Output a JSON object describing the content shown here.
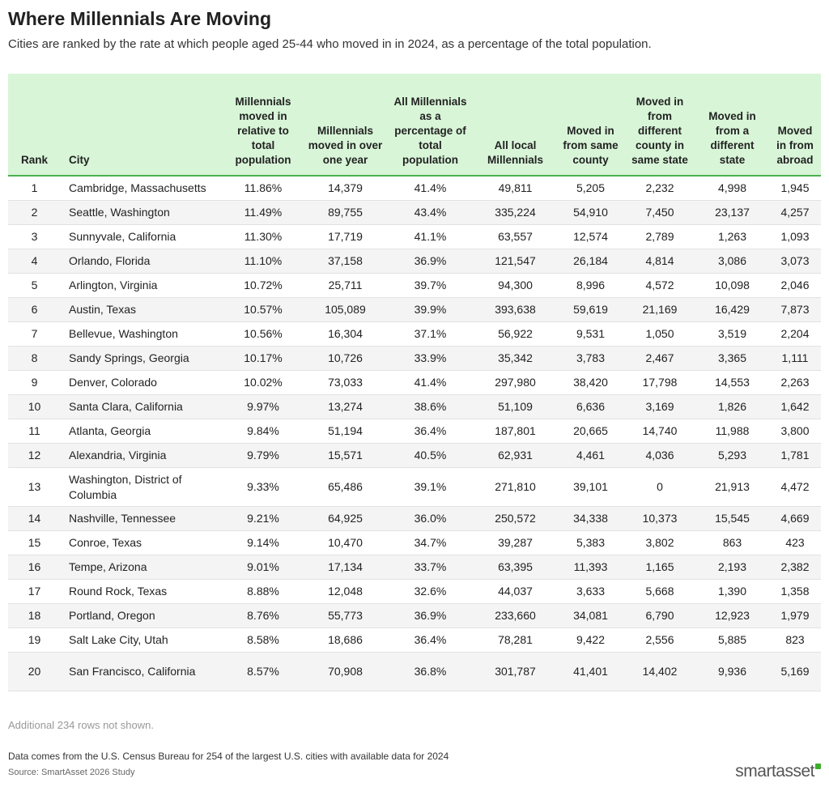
{
  "title": "Where Millennials Are Moving",
  "subtitle": "Cities are ranked by the rate at which people aged 25-44 who moved in in 2024, as a percentage of the total population.",
  "note": "Additional 234 rows not shown.",
  "footnote": "Data comes from the U.S. Census Bureau for 254 of the largest U.S. cities with available data for 2024",
  "source": "Source: SmartAsset 2026 Study",
  "logo": "smartasset",
  "colors": {
    "header_bg": "#d8f5d8",
    "header_rule": "#4caf50",
    "logo_mark": "#3dae2b"
  },
  "chart_data": {
    "type": "table",
    "columns": [
      "Rank",
      "City",
      "Millennials moved in relative to total population",
      "Millennials moved in over one year",
      "All Millennials as a percentage of total population",
      "All local Millennials",
      "Moved in from same county",
      "Moved in from different county in same state",
      "Moved in from a different state",
      "Moved in from abroad"
    ],
    "rows": [
      [
        "1",
        "Cambridge, Massachusetts",
        "11.86%",
        "14,379",
        "41.4%",
        "49,811",
        "5,205",
        "2,232",
        "4,998",
        "1,945"
      ],
      [
        "2",
        "Seattle, Washington",
        "11.49%",
        "89,755",
        "43.4%",
        "335,224",
        "54,910",
        "7,450",
        "23,137",
        "4,257"
      ],
      [
        "3",
        "Sunnyvale, California",
        "11.30%",
        "17,719",
        "41.1%",
        "63,557",
        "12,574",
        "2,789",
        "1,263",
        "1,093"
      ],
      [
        "4",
        "Orlando, Florida",
        "11.10%",
        "37,158",
        "36.9%",
        "121,547",
        "26,184",
        "4,814",
        "3,086",
        "3,073"
      ],
      [
        "5",
        "Arlington, Virginia",
        "10.72%",
        "25,711",
        "39.7%",
        "94,300",
        "8,996",
        "4,572",
        "10,098",
        "2,046"
      ],
      [
        "6",
        "Austin, Texas",
        "10.57%",
        "105,089",
        "39.9%",
        "393,638",
        "59,619",
        "21,169",
        "16,429",
        "7,873"
      ],
      [
        "7",
        "Bellevue, Washington",
        "10.56%",
        "16,304",
        "37.1%",
        "56,922",
        "9,531",
        "1,050",
        "3,519",
        "2,204"
      ],
      [
        "8",
        "Sandy Springs, Georgia",
        "10.17%",
        "10,726",
        "33.9%",
        "35,342",
        "3,783",
        "2,467",
        "3,365",
        "1,111"
      ],
      [
        "9",
        "Denver, Colorado",
        "10.02%",
        "73,033",
        "41.4%",
        "297,980",
        "38,420",
        "17,798",
        "14,553",
        "2,263"
      ],
      [
        "10",
        "Santa Clara, California",
        "9.97%",
        "13,274",
        "38.6%",
        "51,109",
        "6,636",
        "3,169",
        "1,826",
        "1,642"
      ],
      [
        "11",
        "Atlanta, Georgia",
        "9.84%",
        "51,194",
        "36.4%",
        "187,801",
        "20,665",
        "14,740",
        "11,988",
        "3,800"
      ],
      [
        "12",
        "Alexandria, Virginia",
        "9.79%",
        "15,571",
        "40.5%",
        "62,931",
        "4,461",
        "4,036",
        "5,293",
        "1,781"
      ],
      [
        "13",
        "Washington, District of Columbia",
        "9.33%",
        "65,486",
        "39.1%",
        "271,810",
        "39,101",
        "0",
        "21,913",
        "4,472"
      ],
      [
        "14",
        "Nashville, Tennessee",
        "9.21%",
        "64,925",
        "36.0%",
        "250,572",
        "34,338",
        "10,373",
        "15,545",
        "4,669"
      ],
      [
        "15",
        "Conroe, Texas",
        "9.14%",
        "10,470",
        "34.7%",
        "39,287",
        "5,383",
        "3,802",
        "863",
        "423"
      ],
      [
        "16",
        "Tempe, Arizona",
        "9.01%",
        "17,134",
        "33.7%",
        "63,395",
        "11,393",
        "1,165",
        "2,193",
        "2,382"
      ],
      [
        "17",
        "Round Rock, Texas",
        "8.88%",
        "12,048",
        "32.6%",
        "44,037",
        "3,633",
        "5,668",
        "1,390",
        "1,358"
      ],
      [
        "18",
        "Portland, Oregon",
        "8.76%",
        "55,773",
        "36.9%",
        "233,660",
        "34,081",
        "6,790",
        "12,923",
        "1,979"
      ],
      [
        "19",
        "Salt Lake City, Utah",
        "8.58%",
        "18,686",
        "36.4%",
        "78,281",
        "9,422",
        "2,556",
        "5,885",
        "823"
      ],
      [
        "20",
        "San Francisco, California",
        "8.57%",
        "70,908",
        "36.8%",
        "301,787",
        "41,401",
        "14,402",
        "9,936",
        "5,169"
      ]
    ]
  }
}
